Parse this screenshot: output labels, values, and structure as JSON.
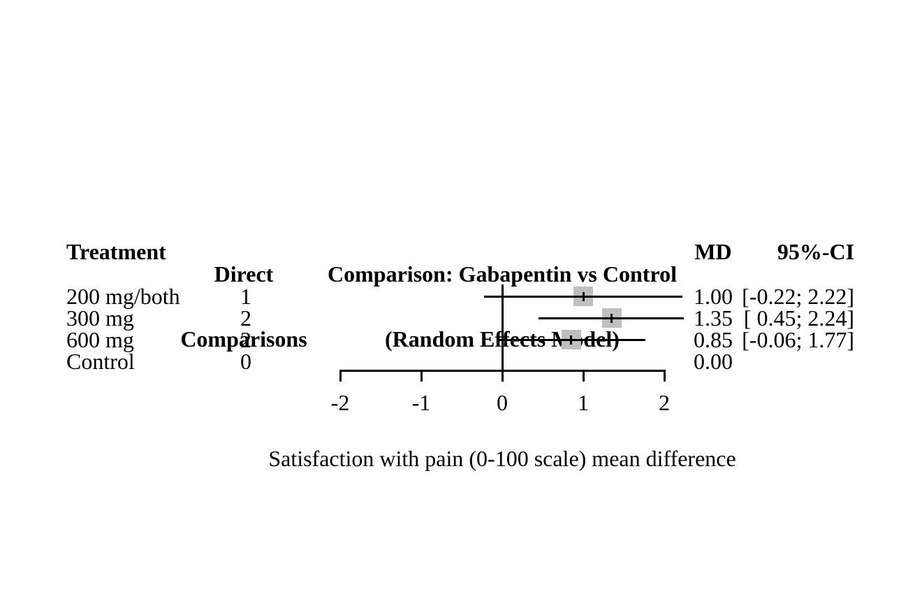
{
  "header": {
    "treatment": "Treatment",
    "direct_comparisons_line1": "Direct",
    "direct_comparisons_line2": "Comparisons",
    "md": "MD",
    "ci": "95%-CI"
  },
  "title": {
    "line1": "Comparison: Gabapentin vs Control",
    "line2": "(Random Effects Model)"
  },
  "caption": "Satisfaction with pain (0-100 scale) mean difference",
  "colors": {
    "square_fill": "#bfbfbf",
    "line": "#000000",
    "text": "#000000",
    "background": "#ffffff"
  },
  "chart_data": {
    "type": "forest",
    "title": "Comparison: Gabapentin vs Control (Random Effects Model)",
    "effect_measure": "MD",
    "xlabel": "Satisfaction with pain (0-100 scale) mean difference",
    "x_ticks": [
      -2,
      -1,
      0,
      1,
      2
    ],
    "x_tick_labels": [
      "-2",
      "-1",
      "0",
      "1",
      "2"
    ],
    "xlim": [
      -2,
      2
    ],
    "reference_line": 0,
    "rows": [
      {
        "treatment": "200 mg/both",
        "direct_comparisons": "1",
        "md": 1.0,
        "md_label": "1.00",
        "ci_lower": -0.22,
        "ci_upper": 2.22,
        "ci_label": "[-0.22; 2.22]"
      },
      {
        "treatment": "300 mg",
        "direct_comparisons": "2",
        "md": 1.35,
        "md_label": "1.35",
        "ci_lower": 0.45,
        "ci_upper": 2.24,
        "ci_label": "[ 0.45; 2.24]"
      },
      {
        "treatment": "600 mg",
        "direct_comparisons": "2",
        "md": 0.85,
        "md_label": "0.85",
        "ci_lower": -0.06,
        "ci_upper": 1.77,
        "ci_label": "[-0.06; 1.77]"
      },
      {
        "treatment": "Control",
        "direct_comparisons": "0",
        "md": 0.0,
        "md_label": "0.00",
        "ci_lower": null,
        "ci_upper": null,
        "ci_label": ""
      }
    ]
  }
}
